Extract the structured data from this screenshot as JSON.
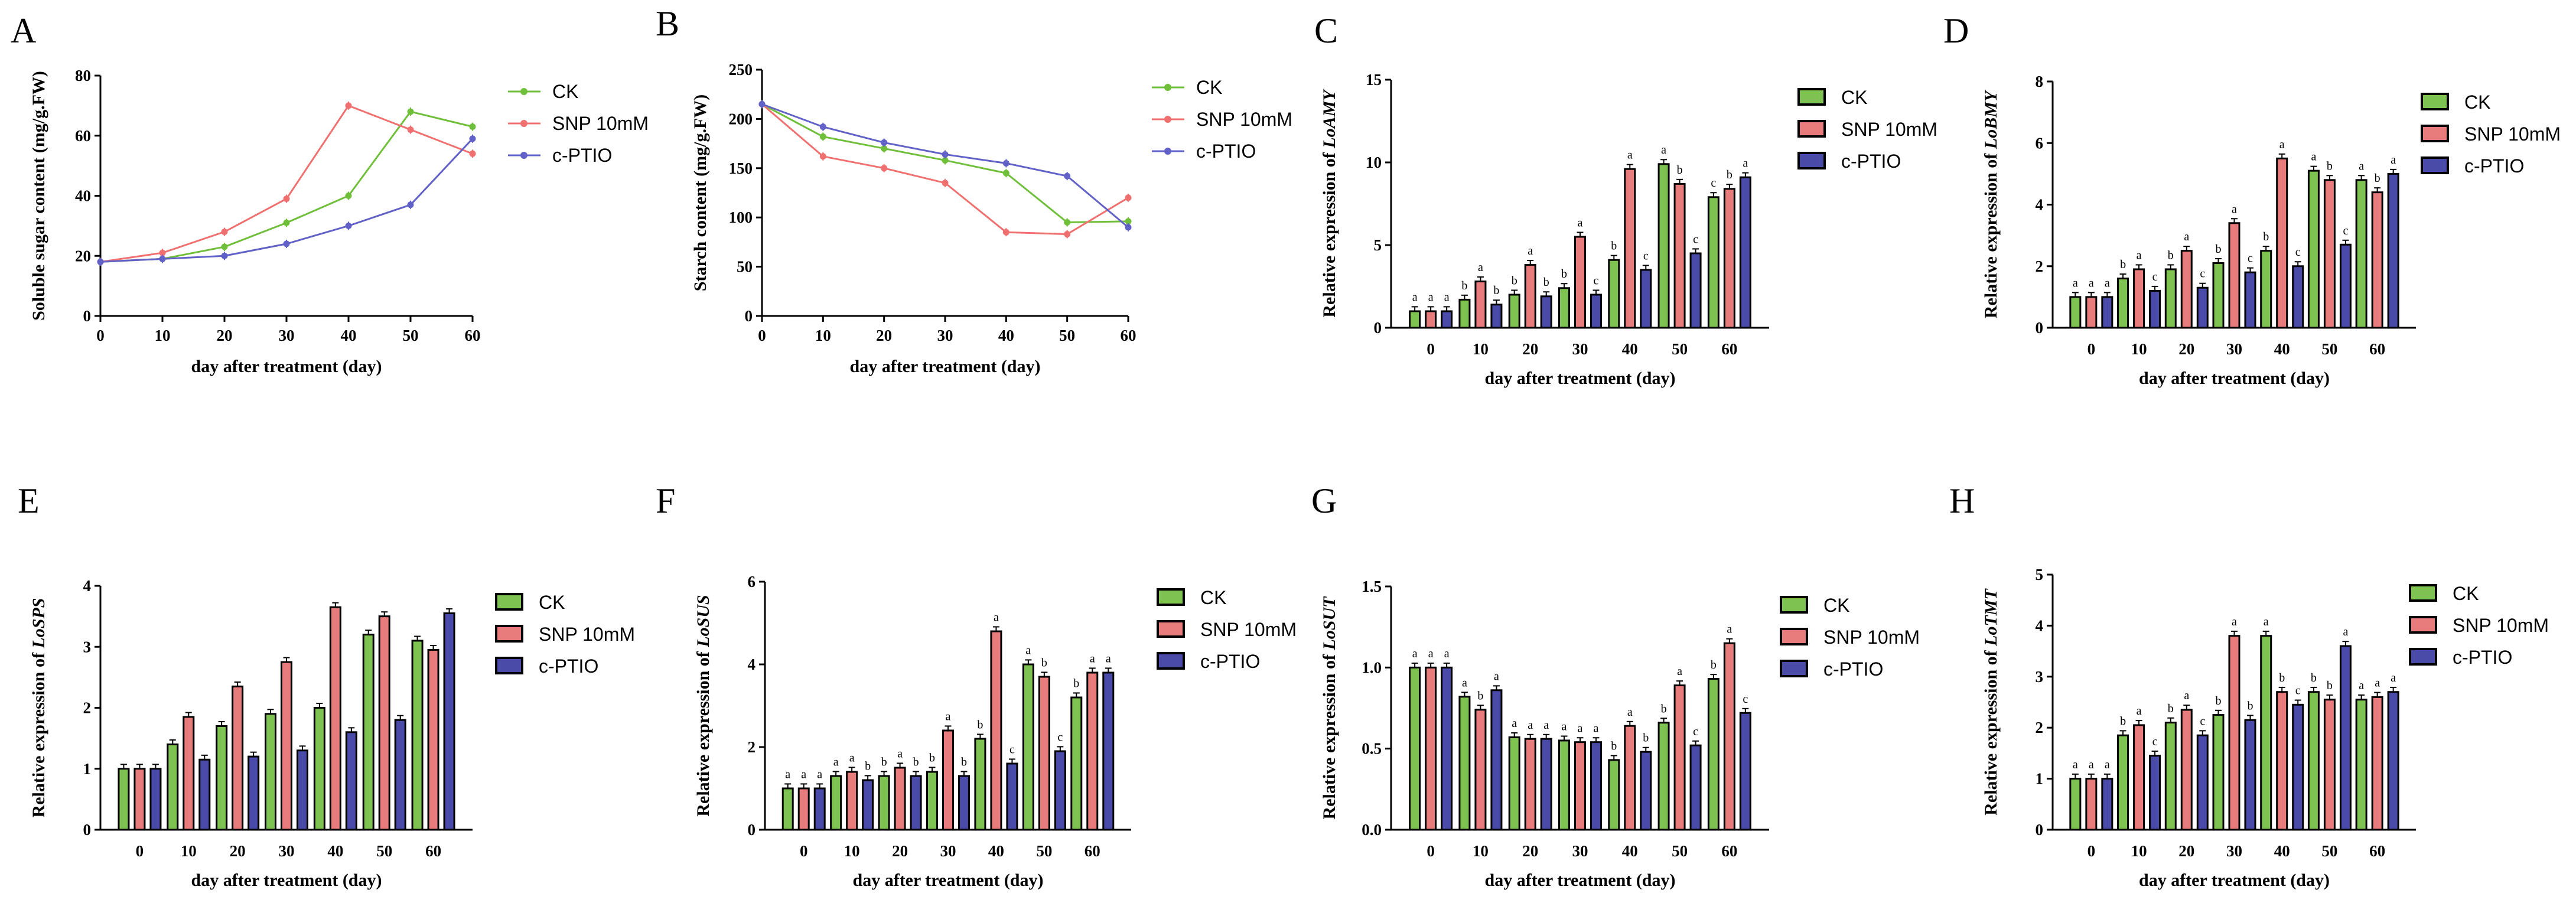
{
  "colors": {
    "CK": "#6fbf3a",
    "SNP 10mM": "#f07070",
    "c-PTIO": "#6161c8",
    "CK_bar": "#7ec251",
    "SNP 10mM_bar": "#e87c7c",
    "c-PTIO_bar": "#4a4aa8"
  },
  "chart_data": [
    {
      "panel": "A",
      "type": "line",
      "xlabel": "day after treatment (day)",
      "ylabel": "Soluble sugar content (mg/g.FW)",
      "x": [
        0,
        10,
        20,
        30,
        40,
        50,
        60
      ],
      "xticks": [
        "0",
        "10",
        "20",
        "30",
        "40",
        "50",
        "60"
      ],
      "yticks": [
        "0",
        "20",
        "40",
        "60",
        "80"
      ],
      "ylim": [
        0,
        80
      ],
      "legend": "right",
      "series": [
        {
          "name": "CK",
          "values": [
            18,
            19,
            23,
            31,
            40,
            68,
            63
          ]
        },
        {
          "name": "SNP 10mM",
          "values": [
            18,
            21,
            28,
            39,
            70,
            62,
            54
          ]
        },
        {
          "name": "c-PTIO",
          "values": [
            18,
            19,
            20,
            24,
            30,
            37,
            59
          ]
        }
      ]
    },
    {
      "panel": "B",
      "type": "line",
      "xlabel": "day after treatment (day)",
      "ylabel": "Starch content (mg/g.FW)",
      "x": [
        0,
        10,
        20,
        30,
        40,
        50,
        60
      ],
      "xticks": [
        "0",
        "10",
        "20",
        "30",
        "40",
        "50",
        "60"
      ],
      "yticks": [
        "0",
        "50",
        "100",
        "150",
        "200",
        "250"
      ],
      "ylim": [
        0,
        250
      ],
      "legend": "right",
      "series": [
        {
          "name": "CK",
          "values": [
            215,
            182,
            170,
            158,
            145,
            95,
            96
          ]
        },
        {
          "name": "SNP 10mM",
          "values": [
            215,
            162,
            150,
            135,
            85,
            83,
            120
          ]
        },
        {
          "name": "c-PTIO",
          "values": [
            215,
            192,
            176,
            164,
            155,
            142,
            90
          ]
        }
      ]
    },
    {
      "panel": "C",
      "type": "bar",
      "xlabel": "day after treatment (day)",
      "ylabel_prefix": "Relative expression of ",
      "gene": "LoAMY",
      "categories": [
        "0",
        "10",
        "20",
        "30",
        "40",
        "50",
        "60"
      ],
      "yticks": [
        "0",
        "5",
        "10",
        "15"
      ],
      "ylim": [
        0,
        15
      ],
      "legend": "right",
      "series": [
        {
          "name": "CK",
          "values": [
            1.0,
            1.7,
            2.0,
            2.4,
            4.1,
            9.9,
            7.9
          ],
          "sig": [
            "a",
            "b",
            "b",
            "b",
            "b",
            "a",
            "c"
          ]
        },
        {
          "name": "SNP 10mM",
          "values": [
            1.0,
            2.8,
            3.8,
            5.5,
            9.6,
            8.7,
            8.4
          ],
          "sig": [
            "a",
            "a",
            "a",
            "a",
            "a",
            "b",
            "b"
          ]
        },
        {
          "name": "c-PTIO",
          "values": [
            1.0,
            1.4,
            1.9,
            2.0,
            3.5,
            4.5,
            9.1
          ],
          "sig": [
            "a",
            "b",
            "b",
            "c",
            "c",
            "c",
            "a"
          ]
        }
      ]
    },
    {
      "panel": "D",
      "type": "bar",
      "xlabel": "day after treatment (day)",
      "ylabel_prefix": "Relative expression of ",
      "gene": "LoBMY",
      "categories": [
        "0",
        "10",
        "20",
        "30",
        "40",
        "50",
        "60"
      ],
      "yticks": [
        "0",
        "2",
        "4",
        "6",
        "8"
      ],
      "ylim": [
        0,
        8
      ],
      "legend": "right",
      "series": [
        {
          "name": "CK",
          "values": [
            1.0,
            1.6,
            1.9,
            2.1,
            2.5,
            5.1,
            4.8
          ],
          "sig": [
            "a",
            "b",
            "b",
            "b",
            "b",
            "a",
            "a"
          ]
        },
        {
          "name": "SNP 10mM",
          "values": [
            1.0,
            1.9,
            2.5,
            3.4,
            5.5,
            4.8,
            4.4
          ],
          "sig": [
            "a",
            "a",
            "a",
            "a",
            "a",
            "b",
            "b"
          ]
        },
        {
          "name": "c-PTIO",
          "values": [
            1.0,
            1.2,
            1.3,
            1.8,
            2.0,
            2.7,
            5.0
          ],
          "sig": [
            "a",
            "c",
            "c",
            "c",
            "c",
            "c",
            "a"
          ]
        }
      ]
    },
    {
      "panel": "E",
      "type": "bar",
      "xlabel": "day after treatment (day)",
      "ylabel_prefix": "Relative expression of ",
      "gene": "LoSPS",
      "categories": [
        "0",
        "10",
        "20",
        "30",
        "40",
        "50",
        "60"
      ],
      "yticks": [
        "0",
        "1",
        "2",
        "3",
        "4"
      ],
      "ylim": [
        0,
        4
      ],
      "legend": "right",
      "series": [
        {
          "name": "CK",
          "values": [
            1.0,
            1.4,
            1.7,
            1.9,
            2.0,
            3.2,
            3.1
          ],
          "sig": []
        },
        {
          "name": "SNP 10mM",
          "values": [
            1.0,
            1.85,
            2.35,
            2.75,
            3.65,
            3.5,
            2.95
          ],
          "sig": []
        },
        {
          "name": "c-PTIO",
          "values": [
            1.0,
            1.15,
            1.2,
            1.3,
            1.6,
            1.8,
            3.55
          ],
          "sig": []
        }
      ]
    },
    {
      "panel": "F",
      "type": "bar",
      "xlabel": "day after treatment (day)",
      "ylabel_prefix": "Relative expression of ",
      "gene": "LoSUS",
      "categories": [
        "0",
        "10",
        "20",
        "30",
        "40",
        "50",
        "60"
      ],
      "yticks": [
        "0",
        "2",
        "4",
        "6"
      ],
      "ylim": [
        0,
        6
      ],
      "legend": "right",
      "series": [
        {
          "name": "CK",
          "values": [
            1.0,
            1.3,
            1.3,
            1.4,
            2.2,
            4.0,
            3.2
          ],
          "sig": [
            "a",
            "a",
            "b",
            "b",
            "b",
            "a",
            "b"
          ]
        },
        {
          "name": "SNP 10mM",
          "values": [
            1.0,
            1.4,
            1.5,
            2.4,
            4.8,
            3.7,
            3.8
          ],
          "sig": [
            "a",
            "a",
            "a",
            "a",
            "a",
            "b",
            "a"
          ]
        },
        {
          "name": "c-PTIO",
          "values": [
            1.0,
            1.2,
            1.3,
            1.3,
            1.6,
            1.9,
            3.8
          ],
          "sig": [
            "a",
            "b",
            "b",
            "b",
            "c",
            "c",
            "a"
          ]
        }
      ]
    },
    {
      "panel": "G",
      "type": "bar",
      "xlabel": "day after treatment (day)",
      "ylabel_prefix": "Relative expression of ",
      "gene": "LoSUT",
      "categories": [
        "0",
        "10",
        "20",
        "30",
        "40",
        "50",
        "60"
      ],
      "yticks": [
        "0.0",
        "0.5",
        "1.0",
        "1.5"
      ],
      "ylim": [
        0,
        1.5
      ],
      "legend": "right",
      "series": [
        {
          "name": "CK",
          "values": [
            1.0,
            0.82,
            0.57,
            0.55,
            0.43,
            0.66,
            0.93
          ],
          "sig": [
            "a",
            "a",
            "a",
            "a",
            "b",
            "b",
            "b"
          ]
        },
        {
          "name": "SNP 10mM",
          "values": [
            1.0,
            0.74,
            0.56,
            0.54,
            0.64,
            0.89,
            1.15
          ],
          "sig": [
            "a",
            "b",
            "a",
            "a",
            "a",
            "a",
            "a"
          ]
        },
        {
          "name": "c-PTIO",
          "values": [
            1.0,
            0.86,
            0.56,
            0.54,
            0.48,
            0.52,
            0.72
          ],
          "sig": [
            "a",
            "a",
            "a",
            "a",
            "b",
            "c",
            "c"
          ]
        }
      ]
    },
    {
      "panel": "H",
      "type": "bar",
      "xlabel": "day after treatment (day)",
      "ylabel_prefix": "Relative expression of ",
      "gene": "LoTMT",
      "categories": [
        "0",
        "10",
        "20",
        "30",
        "40",
        "50",
        "60"
      ],
      "yticks": [
        "0",
        "1",
        "2",
        "3",
        "4",
        "5"
      ],
      "ylim": [
        0,
        5
      ],
      "legend": "right",
      "series": [
        {
          "name": "CK",
          "values": [
            1.0,
            1.85,
            2.1,
            2.25,
            3.8,
            2.7,
            2.55
          ],
          "sig": [
            "a",
            "b",
            "b",
            "b",
            "a",
            "b",
            "a"
          ]
        },
        {
          "name": "SNP 10mM",
          "values": [
            1.0,
            2.05,
            2.35,
            3.8,
            2.7,
            2.55,
            2.6
          ],
          "sig": [
            "a",
            "a",
            "a",
            "a",
            "b",
            "b",
            "a"
          ]
        },
        {
          "name": "c-PTIO",
          "values": [
            1.0,
            1.45,
            1.85,
            2.15,
            2.45,
            3.6,
            2.7
          ],
          "sig": [
            "a",
            "c",
            "c",
            "b",
            "c",
            "a",
            "a"
          ]
        }
      ]
    }
  ]
}
